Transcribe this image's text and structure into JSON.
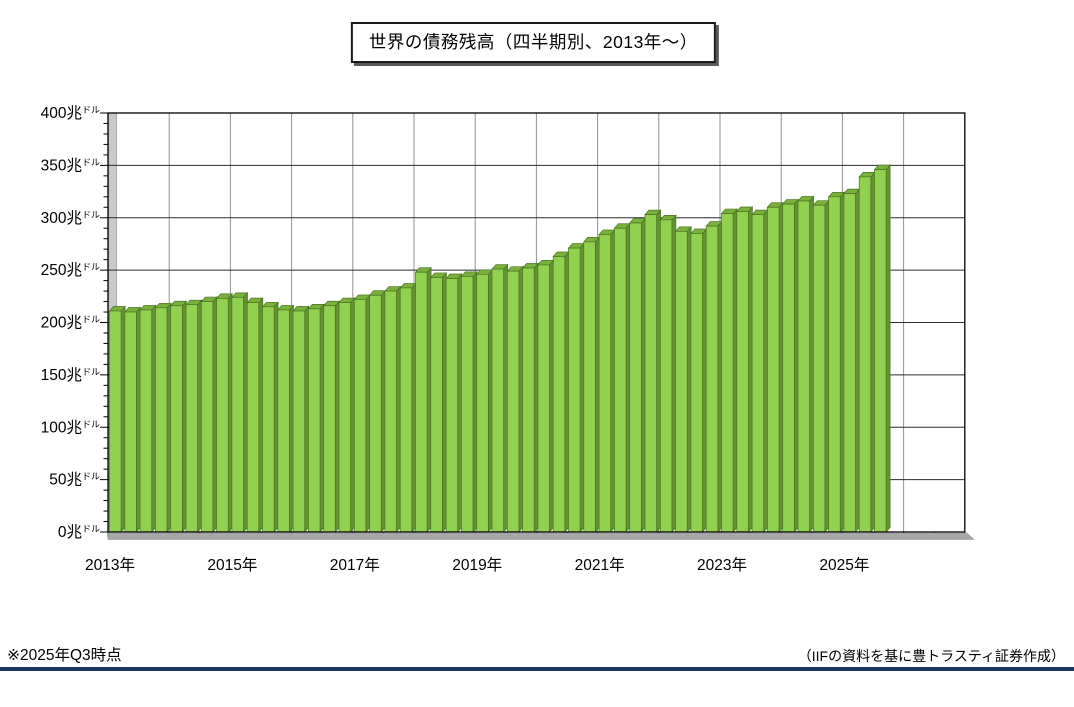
{
  "title_box": "世界の債務残高（四半期別、2013年～）",
  "footer": {
    "note": "※2025年Q3時点",
    "source": "（IIFの資料を基に豊トラスティ証券作成）"
  },
  "chart_data": {
    "type": "bar",
    "title": "世界の債務残高（四半期別、2013年～）",
    "ylabel": "兆ドル",
    "y_unit_main": "兆",
    "y_unit_small": "ドル",
    "ylim": [
      0,
      400
    ],
    "y_ticks": [
      0,
      50,
      100,
      150,
      200,
      250,
      300,
      350,
      400
    ],
    "y_minor_step": 10,
    "x_tick_labels": [
      "2013年",
      "2015年",
      "2017年",
      "2019年",
      "2021年",
      "2023年",
      "2025年"
    ],
    "grid": "on",
    "legend_position": "none",
    "categories": [
      "2013Q1",
      "2013Q2",
      "2013Q3",
      "2013Q4",
      "2014Q1",
      "2014Q2",
      "2014Q3",
      "2014Q4",
      "2015Q1",
      "2015Q2",
      "2015Q3",
      "2015Q4",
      "2016Q1",
      "2016Q2",
      "2016Q3",
      "2016Q4",
      "2017Q1",
      "2017Q2",
      "2017Q3",
      "2017Q4",
      "2018Q1",
      "2018Q2",
      "2018Q3",
      "2018Q4",
      "2019Q1",
      "2019Q2",
      "2019Q3",
      "2019Q4",
      "2020Q1",
      "2020Q2",
      "2020Q3",
      "2020Q4",
      "2021Q1",
      "2021Q2",
      "2021Q3",
      "2021Q4",
      "2022Q1",
      "2022Q2",
      "2022Q3",
      "2022Q4",
      "2023Q1",
      "2023Q2",
      "2023Q3",
      "2023Q4",
      "2024Q1",
      "2024Q2",
      "2024Q3",
      "2024Q4",
      "2025Q1",
      "2025Q2",
      "2025Q3"
    ],
    "values": [
      211,
      210,
      212,
      214,
      216,
      217,
      220,
      223,
      224,
      219,
      215,
      212,
      211,
      213,
      216,
      219,
      222,
      226,
      230,
      233,
      248,
      243,
      242,
      244,
      246,
      251,
      249,
      252,
      255,
      263,
      271,
      277,
      284,
      290,
      295,
      303,
      298,
      287,
      285,
      292,
      304,
      306,
      303,
      310,
      313,
      316,
      312,
      320,
      323,
      339,
      346
    ],
    "colors": {
      "bar_front": "#92d050",
      "bar_top": "#7ab13c",
      "bar_side": "#639434",
      "bar_outline": "#4a7323",
      "grid_h": "#2b2b2b",
      "grid_v": "#929292",
      "frame": "#000000",
      "wall": "#c9c9c9",
      "wall_edge": "#9b9b9b",
      "floor": "#a8a8a8",
      "footer_line": "#17375e"
    }
  }
}
